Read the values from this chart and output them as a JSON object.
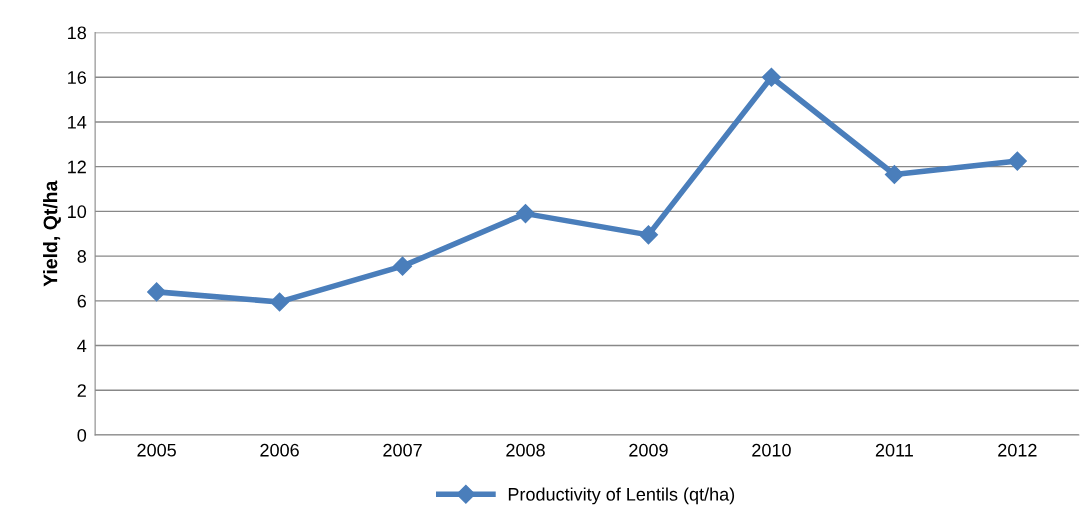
{
  "chart_data": {
    "type": "line",
    "ylabel": "Yield, Qt/ha",
    "categories": [
      "2005",
      "2006",
      "2007",
      "2008",
      "2009",
      "2010",
      "2011",
      "2012"
    ],
    "series": [
      {
        "name": "Productivity of Lentils (qt/ha)",
        "color": "#4a7ebb",
        "values": [
          6.4,
          5.95,
          7.55,
          9.9,
          8.95,
          16.0,
          11.65,
          12.25
        ]
      }
    ],
    "ylim": [
      0,
      18
    ],
    "yticks": [
      0,
      2,
      4,
      6,
      8,
      10,
      12,
      14,
      16,
      18
    ],
    "grid": "y",
    "legend": "bottom",
    "marker": "diamond",
    "line_style": "solid"
  }
}
